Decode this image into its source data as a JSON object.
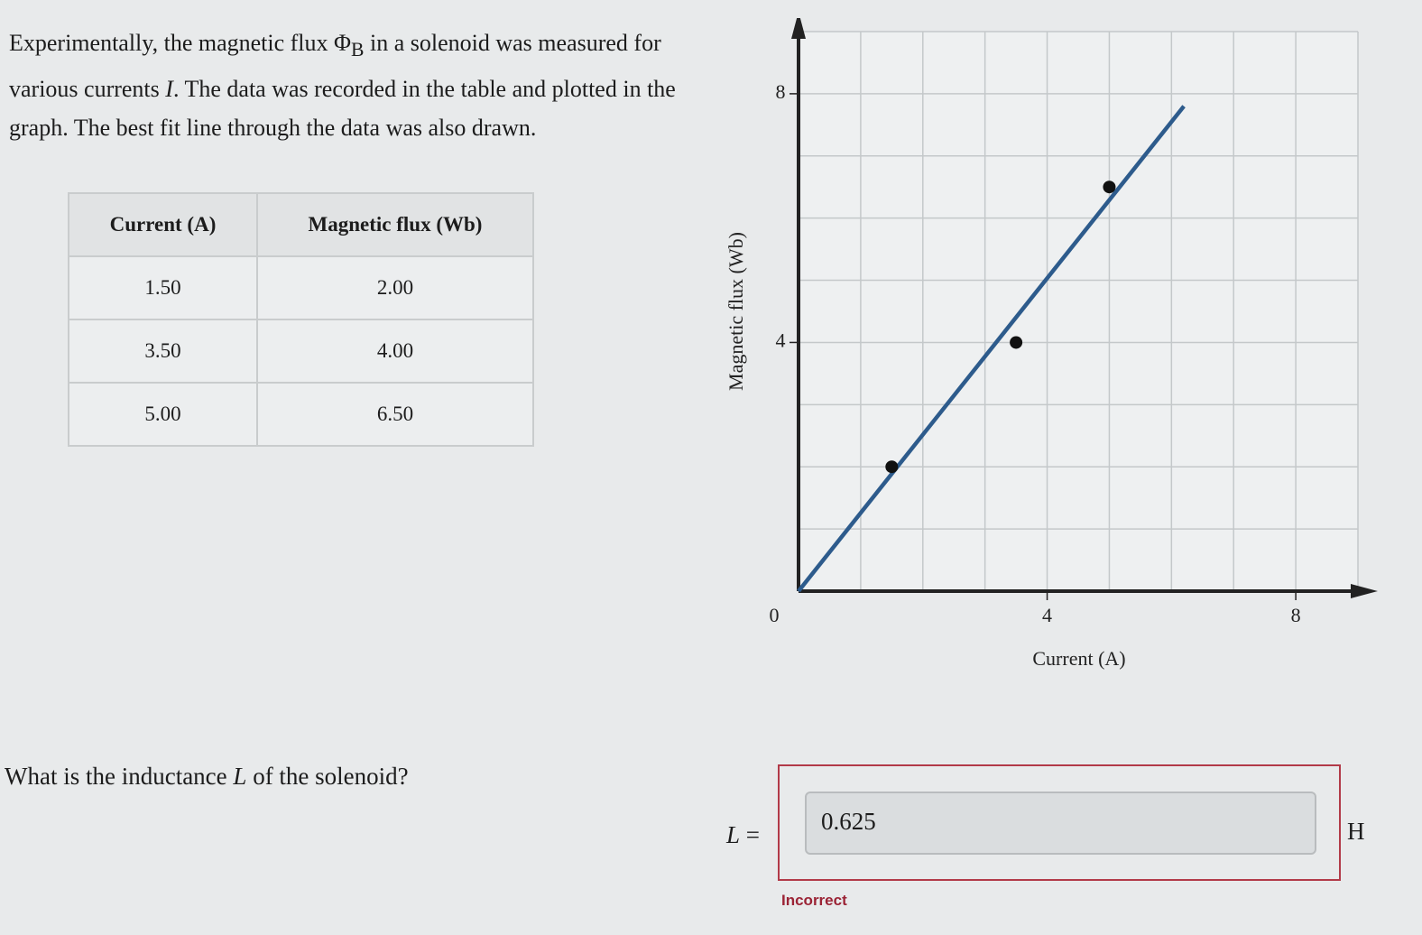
{
  "intro": {
    "parts": [
      "Experimentally, the magnetic flux ",
      "Φ",
      "B",
      " in a solenoid was measured for various currents ",
      "I",
      ". The data was recorded in the table and plotted in the graph. The best fit line through the data was also drawn."
    ]
  },
  "table": {
    "header": [
      "Current (A)",
      "Magnetic flux (Wb)"
    ],
    "rows": [
      [
        "1.50",
        "2.00"
      ],
      [
        "3.50",
        "4.00"
      ],
      [
        "5.00",
        "6.50"
      ]
    ]
  },
  "chart_data": {
    "type": "scatter",
    "x_label": "Current (A)",
    "y_label": "Magnetic flux (Wb)",
    "xlim": [
      0,
      9
    ],
    "ylim": [
      0,
      9
    ],
    "xticks": [
      0,
      4,
      8
    ],
    "yticks": [
      4,
      8
    ],
    "xgrid": [
      1,
      2,
      3,
      4,
      5,
      6,
      7,
      8,
      9
    ],
    "ygrid": [
      1,
      2,
      3,
      4,
      5,
      6,
      7,
      8,
      9
    ],
    "series": [
      {
        "x": [
          1.5,
          3.5,
          5.0
        ],
        "values": [
          2.0,
          4.0,
          6.5
        ],
        "color": "#111111"
      }
    ],
    "fit_line": {
      "x": [
        0,
        6.2
      ],
      "values": [
        0,
        7.8
      ],
      "color": "#2d5b8c"
    }
  },
  "question": {
    "parts": [
      "What is the inductance ",
      "L",
      " of the solenoid?"
    ]
  },
  "answer": {
    "symbol": "L",
    "equals": "=",
    "value": "0.625",
    "unit": "H",
    "feedback": "Incorrect"
  }
}
